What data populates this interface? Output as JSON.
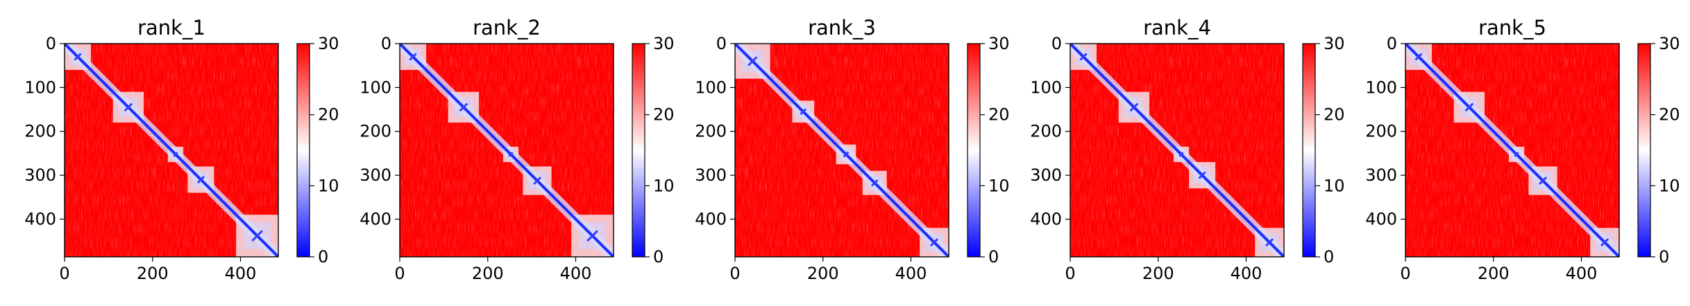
{
  "chart_data": [
    {
      "type": "heatmap",
      "title": "rank_1",
      "matrix_size": 486,
      "xticks": [
        0,
        200,
        400
      ],
      "yticks": [
        0,
        100,
        200,
        300,
        400
      ],
      "colorbar": {
        "min": 0,
        "max": 30,
        "ticks": [
          0,
          10,
          20,
          30
        ],
        "colors": [
          "#0000ff",
          "#ffffff",
          "#ff0000"
        ]
      },
      "low_error_blocks": [
        [
          0,
          60
        ],
        [
          110,
          180
        ],
        [
          235,
          270
        ],
        [
          280,
          340
        ],
        [
          390,
          486
        ]
      ],
      "diagonal_band": true
    },
    {
      "type": "heatmap",
      "title": "rank_2",
      "matrix_size": 486,
      "xticks": [
        0,
        200,
        400
      ],
      "yticks": [
        0,
        100,
        200,
        300,
        400
      ],
      "colorbar": {
        "min": 0,
        "max": 30,
        "ticks": [
          0,
          10,
          20,
          30
        ],
        "colors": [
          "#0000ff",
          "#ffffff",
          "#ff0000"
        ]
      },
      "low_error_blocks": [
        [
          0,
          60
        ],
        [
          110,
          180
        ],
        [
          235,
          270
        ],
        [
          280,
          345
        ],
        [
          390,
          486
        ]
      ],
      "diagonal_band": true
    },
    {
      "type": "heatmap",
      "title": "rank_3",
      "matrix_size": 486,
      "xticks": [
        0,
        200,
        400
      ],
      "yticks": [
        0,
        100,
        200,
        300,
        400
      ],
      "colorbar": {
        "min": 0,
        "max": 30,
        "ticks": [
          0,
          10,
          20,
          30
        ],
        "colors": [
          "#0000ff",
          "#ffffff",
          "#ff0000"
        ]
      },
      "low_error_blocks": [
        [
          0,
          80
        ],
        [
          130,
          180
        ],
        [
          230,
          275
        ],
        [
          290,
          345
        ],
        [
          420,
          486
        ]
      ],
      "diagonal_band": true
    },
    {
      "type": "heatmap",
      "title": "rank_4",
      "matrix_size": 486,
      "xticks": [
        0,
        200,
        400
      ],
      "yticks": [
        0,
        100,
        200,
        300,
        400
      ],
      "colorbar": {
        "min": 0,
        "max": 30,
        "ticks": [
          0,
          10,
          20,
          30
        ],
        "colors": [
          "#0000ff",
          "#ffffff",
          "#ff0000"
        ]
      },
      "low_error_blocks": [
        [
          0,
          60
        ],
        [
          110,
          180
        ],
        [
          235,
          270
        ],
        [
          270,
          330
        ],
        [
          420,
          486
        ]
      ],
      "diagonal_band": true
    },
    {
      "type": "heatmap",
      "title": "rank_5",
      "matrix_size": 486,
      "xticks": [
        0,
        200,
        400
      ],
      "yticks": [
        0,
        100,
        200,
        300,
        400
      ],
      "colorbar": {
        "min": 0,
        "max": 30,
        "ticks": [
          0,
          10,
          20,
          30
        ],
        "colors": [
          "#0000ff",
          "#ffffff",
          "#ff0000"
        ]
      },
      "low_error_blocks": [
        [
          0,
          60
        ],
        [
          110,
          180
        ],
        [
          235,
          270
        ],
        [
          280,
          345
        ],
        [
          420,
          486
        ]
      ],
      "diagonal_band": true
    }
  ]
}
